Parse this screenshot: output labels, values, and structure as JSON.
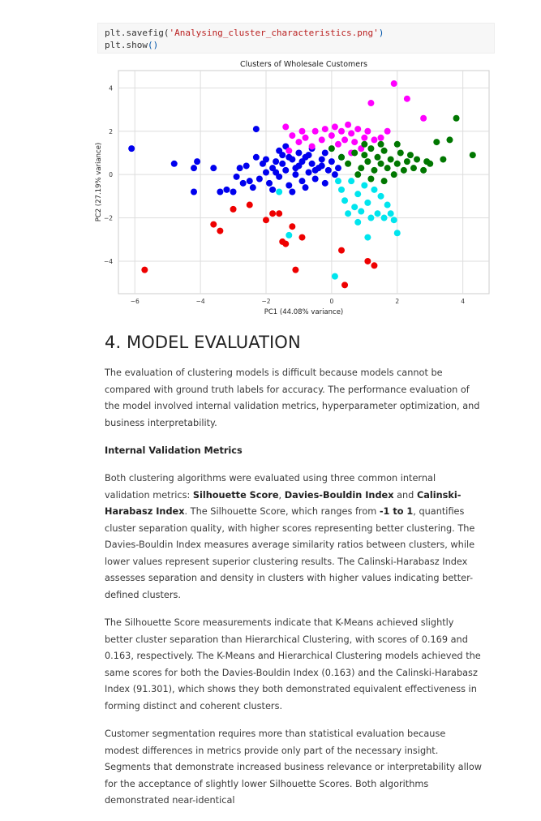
{
  "code": {
    "line1_fn": "plt.savefig(",
    "line1_arg": "'Analysing_cluster_characteristics.png'",
    "line1_end": ")",
    "line2_fn": "plt.show",
    "line2_parens": "()"
  },
  "chart_data": {
    "type": "scatter",
    "title": "Clusters of Wholesale Customers",
    "xlabel": "PC1 (44.08% variance)",
    "ylabel": "PC2 (27.19% variance)",
    "xlim": [
      -6.5,
      4.8
    ],
    "ylim": [
      -5.5,
      4.8
    ],
    "xticks": [
      -6,
      -4,
      -2,
      0,
      2,
      4
    ],
    "yticks": [
      -4,
      -2,
      0,
      2,
      4
    ],
    "grid": true,
    "series": [
      {
        "color": "#0000ee",
        "points": [
          [
            -6.1,
            1.2
          ],
          [
            -4.8,
            0.5
          ],
          [
            -4.2,
            0.3
          ],
          [
            -4.1,
            0.6
          ],
          [
            -3.6,
            0.3
          ],
          [
            -4.2,
            -0.8
          ],
          [
            -3.2,
            -0.7
          ],
          [
            -3.0,
            -0.8
          ],
          [
            -2.8,
            0.3
          ],
          [
            -2.6,
            0.4
          ],
          [
            -2.5,
            -0.3
          ],
          [
            -2.4,
            -0.6
          ],
          [
            -2.3,
            0.8
          ],
          [
            -2.2,
            -0.2
          ],
          [
            -2.1,
            0.5
          ],
          [
            -2.0,
            0.1
          ],
          [
            -1.9,
            -0.4
          ],
          [
            -1.8,
            0.3
          ],
          [
            -1.7,
            0.6
          ],
          [
            -1.6,
            -0.1
          ],
          [
            -1.5,
            0.9
          ],
          [
            -1.4,
            0.2
          ],
          [
            -1.3,
            -0.5
          ],
          [
            -1.2,
            0.7
          ],
          [
            -1.1,
            0.0
          ],
          [
            -1.0,
            0.4
          ],
          [
            -0.9,
            -0.3
          ],
          [
            -0.8,
            0.8
          ],
          [
            -0.7,
            0.1
          ],
          [
            -0.6,
            0.5
          ],
          [
            -0.5,
            -0.2
          ],
          [
            -0.4,
            0.3
          ],
          [
            -0.3,
            0.7
          ],
          [
            -0.2,
            -0.4
          ],
          [
            -0.1,
            0.2
          ],
          [
            0.0,
            0.6
          ],
          [
            0.1,
            0.0
          ],
          [
            0.2,
            0.3
          ],
          [
            -1.8,
            -0.7
          ],
          [
            -1.6,
            1.1
          ],
          [
            -1.4,
            1.3
          ],
          [
            -1.2,
            -0.8
          ],
          [
            -1.0,
            1.0
          ],
          [
            -0.8,
            -0.6
          ],
          [
            -0.6,
            1.2
          ],
          [
            -2.3,
            2.1
          ],
          [
            -2.7,
            -0.4
          ],
          [
            -1.5,
            0.5
          ],
          [
            -1.3,
            0.8
          ],
          [
            -1.1,
            0.3
          ],
          [
            -0.9,
            0.6
          ],
          [
            -0.7,
            0.9
          ],
          [
            -0.5,
            0.2
          ],
          [
            -0.3,
            0.4
          ],
          [
            -1.7,
            0.1
          ],
          [
            -2.0,
            0.7
          ],
          [
            -0.2,
            1.0
          ],
          [
            0.3,
            0.8
          ],
          [
            -3.4,
            -0.8
          ],
          [
            -2.9,
            -0.1
          ]
        ]
      },
      {
        "color": "#ff00ff",
        "points": [
          [
            -1.4,
            2.2
          ],
          [
            -1.2,
            1.8
          ],
          [
            -1.0,
            1.5
          ],
          [
            -0.8,
            1.7
          ],
          [
            -0.6,
            1.3
          ],
          [
            -0.5,
            2.0
          ],
          [
            -0.3,
            1.6
          ],
          [
            -0.2,
            2.1
          ],
          [
            0.0,
            1.8
          ],
          [
            0.2,
            1.4
          ],
          [
            0.3,
            2.0
          ],
          [
            0.4,
            1.6
          ],
          [
            0.5,
            2.3
          ],
          [
            0.6,
            1.9
          ],
          [
            0.7,
            1.5
          ],
          [
            0.8,
            2.1
          ],
          [
            1.0,
            1.7
          ],
          [
            1.1,
            2.0
          ],
          [
            1.3,
            1.6
          ],
          [
            1.5,
            1.7
          ],
          [
            1.7,
            2.0
          ],
          [
            1.9,
            4.2
          ],
          [
            1.2,
            3.3
          ],
          [
            2.3,
            3.5
          ],
          [
            2.8,
            2.6
          ],
          [
            0.9,
            1.2
          ],
          [
            -0.9,
            2.0
          ],
          [
            0.1,
            2.2
          ],
          [
            -1.3,
            1.1
          ],
          [
            0.6,
            1.0
          ]
        ]
      },
      {
        "color": "#007700",
        "points": [
          [
            0.0,
            1.2
          ],
          [
            0.3,
            0.8
          ],
          [
            0.5,
            0.5
          ],
          [
            0.7,
            1.0
          ],
          [
            0.9,
            0.3
          ],
          [
            1.0,
            0.9
          ],
          [
            1.1,
            0.6
          ],
          [
            1.2,
            1.2
          ],
          [
            1.3,
            0.2
          ],
          [
            1.4,
            0.8
          ],
          [
            1.5,
            0.5
          ],
          [
            1.6,
            1.1
          ],
          [
            1.7,
            0.3
          ],
          [
            1.8,
            0.7
          ],
          [
            1.9,
            0.0
          ],
          [
            2.0,
            0.5
          ],
          [
            2.1,
            1.0
          ],
          [
            2.2,
            0.2
          ],
          [
            2.3,
            0.6
          ],
          [
            2.4,
            0.9
          ],
          [
            2.5,
            0.3
          ],
          [
            2.6,
            0.7
          ],
          [
            2.8,
            0.2
          ],
          [
            2.9,
            0.6
          ],
          [
            3.0,
            0.5
          ],
          [
            3.2,
            1.5
          ],
          [
            3.4,
            0.7
          ],
          [
            3.6,
            1.6
          ],
          [
            3.8,
            2.6
          ],
          [
            4.3,
            0.9
          ],
          [
            1.0,
            1.4
          ],
          [
            1.5,
            1.4
          ],
          [
            2.0,
            1.4
          ],
          [
            0.8,
            0.0
          ],
          [
            1.2,
            -0.2
          ],
          [
            1.6,
            -0.3
          ]
        ]
      },
      {
        "color": "#00e5ee",
        "points": [
          [
            -1.6,
            -0.8
          ],
          [
            -1.3,
            -2.8
          ],
          [
            0.2,
            -0.3
          ],
          [
            0.3,
            -0.7
          ],
          [
            0.4,
            -1.2
          ],
          [
            0.5,
            -1.8
          ],
          [
            0.6,
            -0.3
          ],
          [
            0.7,
            -1.5
          ],
          [
            0.8,
            -0.9
          ],
          [
            0.9,
            -1.7
          ],
          [
            1.0,
            -0.5
          ],
          [
            1.1,
            -1.3
          ],
          [
            1.2,
            -2.0
          ],
          [
            1.3,
            -0.7
          ],
          [
            1.4,
            -1.8
          ],
          [
            1.5,
            -1.0
          ],
          [
            1.6,
            -2.0
          ],
          [
            1.7,
            -1.4
          ],
          [
            1.8,
            -1.8
          ],
          [
            1.9,
            -2.1
          ],
          [
            2.0,
            -2.7
          ],
          [
            1.1,
            -2.9
          ],
          [
            0.1,
            -4.7
          ],
          [
            0.8,
            -2.2
          ]
        ]
      },
      {
        "color": "#ee0000",
        "points": [
          [
            -5.7,
            -4.4
          ],
          [
            -3.6,
            -2.3
          ],
          [
            -3.4,
            -2.6
          ],
          [
            -3.0,
            -1.6
          ],
          [
            -2.5,
            -1.4
          ],
          [
            -2.0,
            -2.1
          ],
          [
            -1.8,
            -1.8
          ],
          [
            -1.6,
            -1.8
          ],
          [
            -1.5,
            -3.1
          ],
          [
            -1.4,
            -3.2
          ],
          [
            -1.2,
            -2.4
          ],
          [
            -1.1,
            -4.4
          ],
          [
            -0.9,
            -2.9
          ],
          [
            0.3,
            -3.5
          ],
          [
            0.4,
            -5.1
          ],
          [
            1.1,
            -4.0
          ],
          [
            1.3,
            -4.2
          ]
        ]
      }
    ]
  },
  "doc": {
    "heading": "4. MODEL EVALUATION",
    "intro": "The evaluation of clustering models is difficult because models cannot be compared with ground truth labels for accuracy. The performance evaluation of the model involved internal validation metrics, hyperparameter optimization, and business interpretability.",
    "subheading": "Internal Validation Metrics",
    "p1_a": "Both clustering algorithms were evaluated using three common internal validation metrics: ",
    "p1_b1": "Silhouette Score",
    "p1_sep1": ", ",
    "p1_b2": "Davies-Bouldin Index",
    "p1_sep2": " and ",
    "p1_b3": "Calinski-Harabasz Index",
    "p1_c": ". The Silhouette Score, which ranges from ",
    "p1_b4": "-1 to 1",
    "p1_d": ", quantifies cluster separation quality, with higher scores representing better clustering. The Davies-Bouldin Index measures average similarity ratios between clusters, while lower values represent superior clustering results. The Calinski-Harabasz Index assesses separation and density in clusters with higher values indicating better-defined clusters.",
    "p2": "The Silhouette Score measurements indicate that K-Means achieved slightly better cluster separation than Hierarchical Clustering, with scores of 0.169 and 0.163, respectively. The K-Means and Hierarchical Clustering models achieved the same scores for both the Davies-Bouldin Index (0.163) and the Calinski-Harabasz Index (91.301), which shows they both demonstrated equivalent effectiveness in forming distinct and coherent clusters.",
    "p3": "Customer segmentation requires more than statistical evaluation because modest differences in metrics provide only part of the necessary insight. Segments that demonstrate increased business relevance or interpretability allow for the acceptance of slightly lower Silhouette Scores. Both algorithms demonstrated near-identical"
  }
}
